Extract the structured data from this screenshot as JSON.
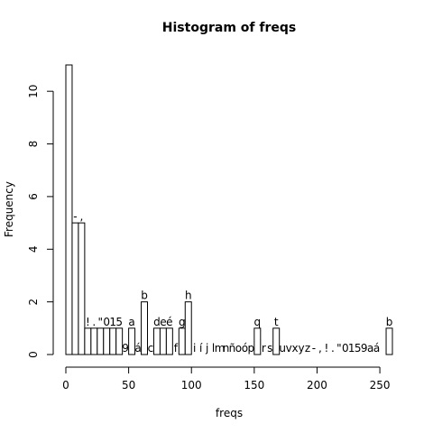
{
  "chart_data": {
    "type": "bar",
    "title": "Histogram of freqs",
    "xlabel": "freqs",
    "ylabel": "Frequency",
    "xlim": [
      0,
      260
    ],
    "ylim": [
      0,
      11
    ],
    "bin_width": 5,
    "x_ticks": [
      0,
      50,
      100,
      150,
      200,
      250
    ],
    "y_ticks": [
      0,
      2,
      4,
      6,
      8,
      10
    ],
    "bins": [
      {
        "start": 0,
        "count": 11,
        "label": ""
      },
      {
        "start": 5,
        "count": 5,
        "label": "-"
      },
      {
        "start": 10,
        "count": 5,
        "label": ","
      },
      {
        "start": 15,
        "count": 1,
        "label": "!"
      },
      {
        "start": 20,
        "count": 1,
        "label": "."
      },
      {
        "start": 25,
        "count": 1,
        "label": "\""
      },
      {
        "start": 30,
        "count": 1,
        "label": "0"
      },
      {
        "start": 35,
        "count": 1,
        "label": "1"
      },
      {
        "start": 40,
        "count": 1,
        "label": "5"
      },
      {
        "start": 45,
        "count": 0,
        "label": "9"
      },
      {
        "start": 50,
        "count": 1,
        "label": "a"
      },
      {
        "start": 55,
        "count": 0,
        "label": "á"
      },
      {
        "start": 60,
        "count": 2,
        "label": "b"
      },
      {
        "start": 65,
        "count": 0,
        "label": "c"
      },
      {
        "start": 70,
        "count": 1,
        "label": "d"
      },
      {
        "start": 75,
        "count": 1,
        "label": "e"
      },
      {
        "start": 80,
        "count": 1,
        "label": "é"
      },
      {
        "start": 85,
        "count": 0,
        "label": "f"
      },
      {
        "start": 90,
        "count": 1,
        "label": "g"
      },
      {
        "start": 95,
        "count": 2,
        "label": "h"
      },
      {
        "start": 100,
        "count": 0,
        "label": "i"
      },
      {
        "start": 105,
        "count": 0,
        "label": "í"
      },
      {
        "start": 110,
        "count": 0,
        "label": "j"
      },
      {
        "start": 115,
        "count": 0,
        "label": "l"
      },
      {
        "start": 120,
        "count": 0,
        "label": "m"
      },
      {
        "start": 125,
        "count": 0,
        "label": "n"
      },
      {
        "start": 130,
        "count": 0,
        "label": "ñ"
      },
      {
        "start": 135,
        "count": 0,
        "label": "o"
      },
      {
        "start": 140,
        "count": 0,
        "label": "ó"
      },
      {
        "start": 145,
        "count": 0,
        "label": "p"
      },
      {
        "start": 150,
        "count": 1,
        "label": "q"
      },
      {
        "start": 155,
        "count": 0,
        "label": "r"
      },
      {
        "start": 160,
        "count": 0,
        "label": "s"
      },
      {
        "start": 165,
        "count": 1,
        "label": "t"
      },
      {
        "start": 170,
        "count": 0,
        "label": "u"
      },
      {
        "start": 175,
        "count": 0,
        "label": "v"
      },
      {
        "start": 180,
        "count": 0,
        "label": "x"
      },
      {
        "start": 185,
        "count": 0,
        "label": "y"
      },
      {
        "start": 190,
        "count": 0,
        "label": "z"
      },
      {
        "start": 195,
        "count": 0,
        "label": "-"
      },
      {
        "start": 200,
        "count": 0,
        "label": ","
      },
      {
        "start": 205,
        "count": 0,
        "label": "!"
      },
      {
        "start": 210,
        "count": 0,
        "label": "."
      },
      {
        "start": 215,
        "count": 0,
        "label": "\""
      },
      {
        "start": 220,
        "count": 0,
        "label": "0"
      },
      {
        "start": 225,
        "count": 0,
        "label": "1"
      },
      {
        "start": 230,
        "count": 0,
        "label": "5"
      },
      {
        "start": 235,
        "count": 0,
        "label": "9"
      },
      {
        "start": 240,
        "count": 0,
        "label": "a"
      },
      {
        "start": 245,
        "count": 0,
        "label": "á"
      },
      {
        "start": 255,
        "count": 1,
        "label": "b"
      }
    ]
  }
}
